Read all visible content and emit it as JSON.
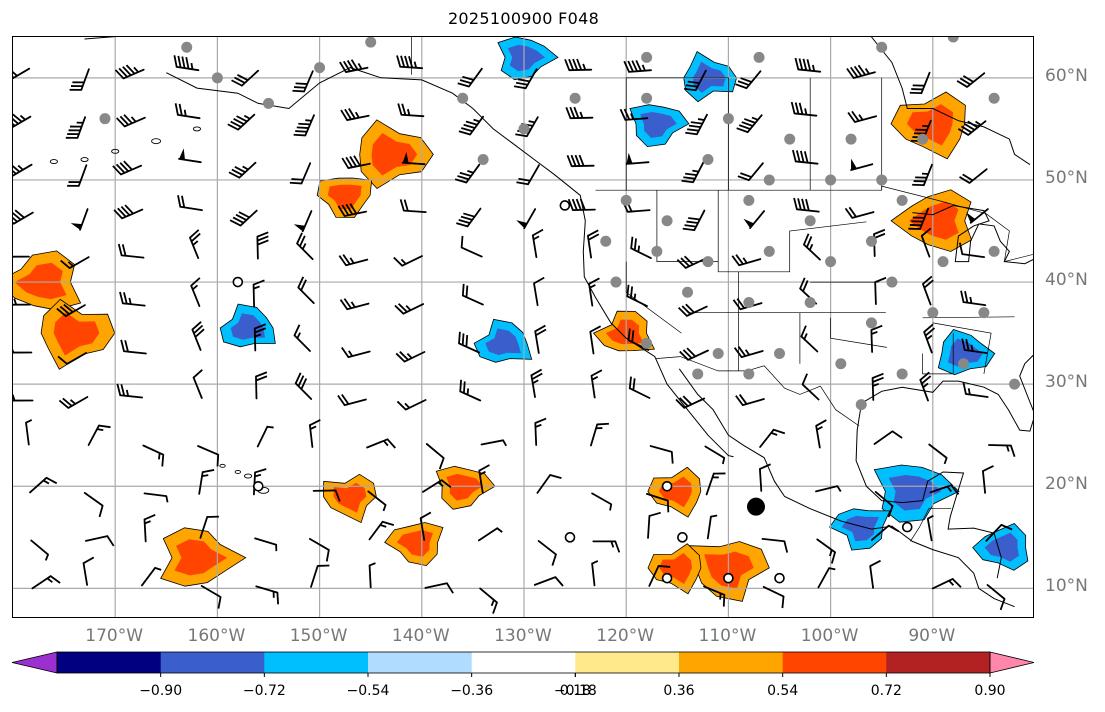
{
  "title": "2025100900 F048",
  "map": {
    "lon_range": [
      -180,
      -80
    ],
    "lat_range": [
      7,
      64
    ],
    "lon_ticks": [
      {
        "value": -170,
        "label": "170°W"
      },
      {
        "value": -160,
        "label": "160°W"
      },
      {
        "value": -150,
        "label": "150°W"
      },
      {
        "value": -140,
        "label": "140°W"
      },
      {
        "value": -130,
        "label": "130°W"
      },
      {
        "value": -120,
        "label": "120°W"
      },
      {
        "value": -110,
        "label": "110°W"
      },
      {
        "value": -100,
        "label": "100°W"
      },
      {
        "value": -90,
        "label": "90°W"
      }
    ],
    "lat_ticks": [
      {
        "value": 60,
        "label": "60°N"
      },
      {
        "value": 50,
        "label": "50°N"
      },
      {
        "value": 40,
        "label": "40°N"
      },
      {
        "value": 30,
        "label": "30°N"
      },
      {
        "value": 20,
        "label": "20°N"
      },
      {
        "value": 10,
        "label": "10°N"
      }
    ],
    "gridlines": true,
    "coast_color": "#000000",
    "grid_color": "#aaaaaa"
  },
  "colorbar": {
    "labels": [
      "−0.90",
      "−0.72",
      "−0.54",
      "−0.36",
      "−0.18",
      "0.18",
      "0.36",
      "0.54",
      "0.72",
      "0.90"
    ],
    "levels": [
      -0.9,
      -0.72,
      -0.54,
      -0.36,
      -0.18,
      0.18,
      0.36,
      0.54,
      0.72,
      0.9
    ],
    "colors": [
      "#9b30d0",
      "#000080",
      "#3a5fcd",
      "#00bfff",
      "#afdcff",
      "#ffffff",
      "#ffe98a",
      "#ffa500",
      "#ff4500",
      "#b22222",
      "#ff88aa"
    ],
    "extend": "both"
  },
  "positive_blobs": [
    {
      "lon": -143,
      "lat": 52.5,
      "level": 2
    },
    {
      "lon": -147.5,
      "lat": 48.5,
      "level": 1
    },
    {
      "lon": -177,
      "lat": 40,
      "level": 2
    },
    {
      "lon": -174,
      "lat": 35,
      "level": 2
    },
    {
      "lon": -110,
      "lat": 12,
      "level": 2
    },
    {
      "lon": -115,
      "lat": 12,
      "level": 1
    },
    {
      "lon": -162,
      "lat": 13,
      "level": 2
    },
    {
      "lon": -147,
      "lat": 19,
      "level": 1
    },
    {
      "lon": -140.5,
      "lat": 14.5,
      "level": 1
    },
    {
      "lon": -120,
      "lat": 35,
      "level": 1
    },
    {
      "lon": -90,
      "lat": 55.5,
      "level": 2
    },
    {
      "lon": -89.5,
      "lat": 46,
      "level": 2
    },
    {
      "lon": -115,
      "lat": 19.5,
      "level": 1
    },
    {
      "lon": -136,
      "lat": 20,
      "level": 1
    }
  ],
  "negative_blobs": [
    {
      "lon": -92,
      "lat": 19.5,
      "level": 2
    },
    {
      "lon": -97,
      "lat": 16,
      "level": 1
    },
    {
      "lon": -83,
      "lat": 14,
      "level": 1
    },
    {
      "lon": -157,
      "lat": 35.5,
      "level": 1
    },
    {
      "lon": -130,
      "lat": 62,
      "level": 1
    },
    {
      "lon": -112,
      "lat": 60,
      "level": 1
    },
    {
      "lon": -132,
      "lat": 34,
      "level": 1
    },
    {
      "lon": -87,
      "lat": 33,
      "level": 1
    },
    {
      "lon": -117,
      "lat": 55.5,
      "level": 1
    }
  ],
  "station_dots": [
    {
      "lon": -125,
      "lat": 58
    },
    {
      "lon": -118,
      "lat": 58
    },
    {
      "lon": -110,
      "lat": 56
    },
    {
      "lon": -104,
      "lat": 54
    },
    {
      "lon": -98,
      "lat": 54
    },
    {
      "lon": -91,
      "lat": 54
    },
    {
      "lon": -112,
      "lat": 52
    },
    {
      "lon": -106,
      "lat": 50
    },
    {
      "lon": -100,
      "lat": 50
    },
    {
      "lon": -95,
      "lat": 50
    },
    {
      "lon": -120,
      "lat": 48
    },
    {
      "lon": -116,
      "lat": 46
    },
    {
      "lon": -108,
      "lat": 48
    },
    {
      "lon": -102,
      "lat": 46
    },
    {
      "lon": -96,
      "lat": 44
    },
    {
      "lon": -93,
      "lat": 48
    },
    {
      "lon": -122,
      "lat": 44
    },
    {
      "lon": -117,
      "lat": 43
    },
    {
      "lon": -112,
      "lat": 42
    },
    {
      "lon": -106,
      "lat": 43
    },
    {
      "lon": -100,
      "lat": 42
    },
    {
      "lon": -94,
      "lat": 40
    },
    {
      "lon": -89,
      "lat": 42
    },
    {
      "lon": -84,
      "lat": 43
    },
    {
      "lon": -121,
      "lat": 40
    },
    {
      "lon": -114,
      "lat": 39
    },
    {
      "lon": -108,
      "lat": 38
    },
    {
      "lon": -102,
      "lat": 38
    },
    {
      "lon": -96,
      "lat": 36
    },
    {
      "lon": -90,
      "lat": 37
    },
    {
      "lon": -85,
      "lat": 37
    },
    {
      "lon": -118,
      "lat": 34
    },
    {
      "lon": -111,
      "lat": 33
    },
    {
      "lon": -105,
      "lat": 33
    },
    {
      "lon": -99,
      "lat": 32
    },
    {
      "lon": -93,
      "lat": 31
    },
    {
      "lon": -87,
      "lat": 32
    },
    {
      "lon": -82,
      "lat": 30
    },
    {
      "lon": -97,
      "lat": 28
    },
    {
      "lon": -108,
      "lat": 31
    },
    {
      "lon": -113,
      "lat": 31
    },
    {
      "lon": -160,
      "lat": 60
    },
    {
      "lon": -150,
      "lat": 61
    },
    {
      "lon": -136,
      "lat": 58
    },
    {
      "lon": -130,
      "lat": 55
    },
    {
      "lon": -134,
      "lat": 52
    },
    {
      "lon": -163,
      "lat": 63
    },
    {
      "lon": -171,
      "lat": 56
    },
    {
      "lon": -155,
      "lat": 57.5
    },
    {
      "lon": -145,
      "lat": 63.5
    },
    {
      "lon": -118,
      "lat": 62
    },
    {
      "lon": -107,
      "lat": 62
    },
    {
      "lon": -95,
      "lat": 63
    },
    {
      "lon": -88,
      "lat": 64
    },
    {
      "lon": -84,
      "lat": 58
    }
  ],
  "special_markers": [
    {
      "lon": -107.3,
      "lat": 18,
      "type": "big-dot"
    },
    {
      "lon": -126,
      "lat": 47.5,
      "type": "ring"
    },
    {
      "lon": -158,
      "lat": 40,
      "type": "ring"
    },
    {
      "lon": -156,
      "lat": 20,
      "type": "ring"
    },
    {
      "lon": -116,
      "lat": 20,
      "type": "ring"
    },
    {
      "lon": -114.5,
      "lat": 15,
      "type": "ring"
    },
    {
      "lon": -125.5,
      "lat": 15,
      "type": "ring"
    },
    {
      "lon": -116,
      "lat": 11,
      "type": "ring"
    },
    {
      "lon": -110,
      "lat": 11,
      "type": "ring"
    },
    {
      "lon": -105,
      "lat": 11,
      "type": "ring"
    },
    {
      "lon": -92.5,
      "lat": 16,
      "type": "ring"
    }
  ]
}
